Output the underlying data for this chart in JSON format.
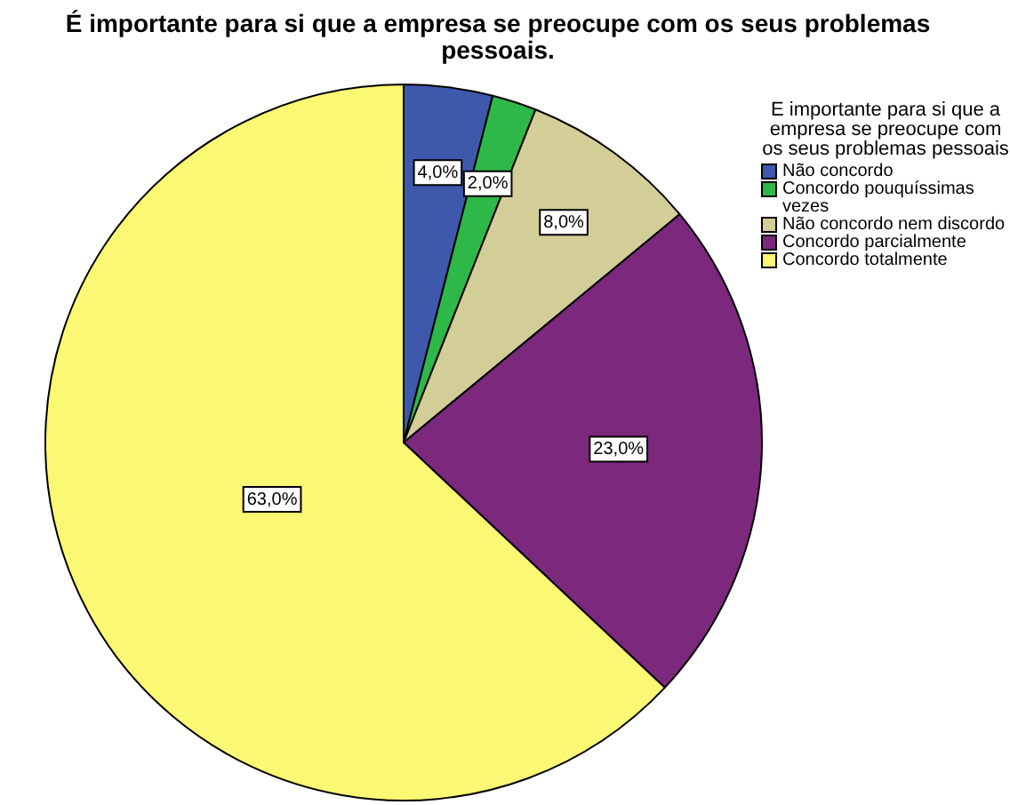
{
  "chart_data": {
    "type": "pie",
    "title": "É importante para si que a empresa se preocupe com os seus problemas pessoais.",
    "legend_title": "E importante para si que a empresa se preocupe com os seus problemas pessoais",
    "legend": "top right",
    "categories": [
      "Não concordo",
      "Concordo pouquíssimas vezes",
      "Não concordo nem discordo",
      "Concordo parcialmente",
      "Concordo totalmente"
    ],
    "values": [
      4,
      2,
      8,
      23,
      63
    ],
    "value_labels": [
      "4,0%",
      "2,0%",
      "8,0%",
      "23,0%",
      "63,0%"
    ],
    "colors": [
      "#3e58ac",
      "#2eb848",
      "#d3ce97",
      "#7c287d",
      "#fbf873"
    ]
  }
}
